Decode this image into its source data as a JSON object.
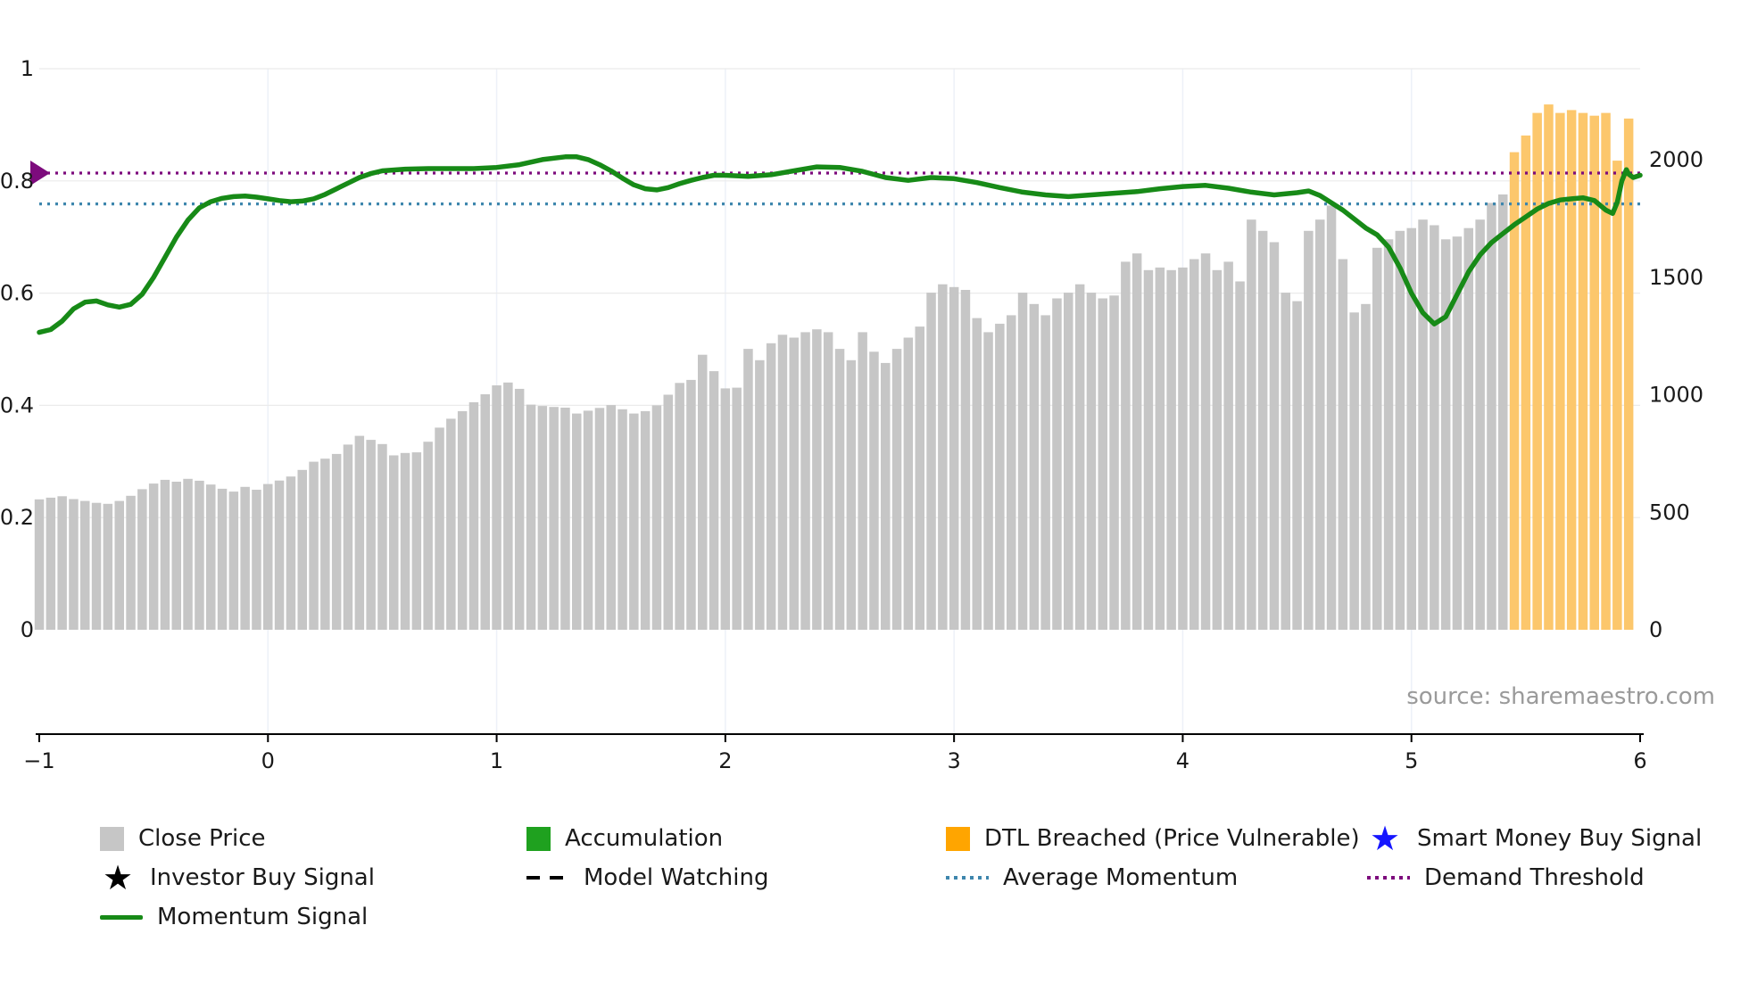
{
  "page": {
    "source": "source: sharemaestro.com"
  },
  "colors": {
    "bar_gray": "#c6c6c6",
    "bar_orange": "#fcc76c",
    "legend_orange": "#ffa500",
    "accumulation_green": "#1fa11f",
    "momentum_green": "#178a17",
    "average_momentum_blue": "#3e86ad",
    "demand_threshold_purple": "#7d0b7d",
    "smart_money_blue": "#1616ff",
    "axis_text": "#1a1a1a",
    "grid_h": "#ebebeb",
    "grid_v": "#edf1f8",
    "source_gray": "#9a9a9a"
  },
  "legend": {
    "items": [
      {
        "label": "Close Price",
        "swatch": "square-gray"
      },
      {
        "label": "Accumulation",
        "swatch": "square-green"
      },
      {
        "label": "DTL Breached (Price Vulnerable)",
        "swatch": "square-orange"
      },
      {
        "label": "Smart Money Buy Signal",
        "swatch": "star-blue"
      },
      {
        "label": "Investor Buy Signal",
        "swatch": "star-black"
      },
      {
        "label": "Model Watching",
        "swatch": "dashed-black-line"
      },
      {
        "label": "Average Momentum",
        "swatch": "dotted-blue-line"
      },
      {
        "label": "Demand Threshold",
        "swatch": "dotted-purple-line"
      },
      {
        "label": "Momentum Signal",
        "swatch": "solid-green-line"
      }
    ]
  },
  "chart_data": {
    "type": "mixed-bar-line",
    "title": "",
    "xlabel": "",
    "ylabel_left": "",
    "ylabel_right": "",
    "xlim": [
      -1,
      6
    ],
    "x_ticks": [
      -1,
      0,
      1,
      2,
      3,
      4,
      5,
      6
    ],
    "x_tick_labels": [
      "−1",
      "0",
      "1",
      "2",
      "3",
      "4",
      "5",
      "6"
    ],
    "left_axis": {
      "range": [
        0,
        1
      ],
      "ticks": [
        0,
        0.2,
        0.4,
        0.6,
        0.8,
        1
      ],
      "tick_labels": [
        "0",
        "0.2",
        "0.4",
        "0.6",
        "0.8",
        "1"
      ]
    },
    "right_axis": {
      "ticks": [
        0,
        500,
        1000,
        1500,
        2000
      ],
      "tick_labels": [
        "0",
        "500",
        "1000",
        "1500",
        "2000"
      ]
    },
    "grid": {
      "h_lines": [
        0.2,
        0.4,
        0.6,
        0.8,
        1.0
      ],
      "v_lines": [
        0,
        1,
        2,
        3,
        4,
        5
      ]
    },
    "thresholds": {
      "average_momentum": 0.759,
      "demand_threshold": 0.814
    },
    "marker": {
      "name": "demand-threshold-marker",
      "x": -1,
      "y": 0.814
    },
    "bars": {
      "name": "Close Price",
      "axis": "right",
      "x_start": -1,
      "x_step": 0.05,
      "dtl_breached_from_index": 129,
      "values": [
        555,
        562,
        568,
        556,
        548,
        540,
        536,
        548,
        570,
        598,
        622,
        638,
        630,
        642,
        634,
        618,
        600,
        588,
        608,
        596,
        620,
        635,
        652,
        680,
        715,
        728,
        748,
        788,
        825,
        808,
        790,
        742,
        752,
        755,
        800,
        860,
        898,
        930,
        968,
        1002,
        1040,
        1052,
        1025,
        958,
        952,
        948,
        945,
        920,
        932,
        944,
        956,
        938,
        920,
        930,
        955,
        1000,
        1050,
        1063,
        1170,
        1100,
        1027,
        1030,
        1195,
        1147,
        1219,
        1255,
        1243,
        1266,
        1278,
        1266,
        1195,
        1147,
        1266,
        1183,
        1135,
        1195,
        1243,
        1290,
        1434,
        1470,
        1458,
        1446,
        1326,
        1266,
        1302,
        1338,
        1434,
        1386,
        1338,
        1410,
        1434,
        1470,
        1434,
        1410,
        1422,
        1566,
        1601,
        1530,
        1541,
        1530,
        1541,
        1577,
        1601,
        1530,
        1566,
        1482,
        1745,
        1697,
        1649,
        1434,
        1398,
        1697,
        1745,
        1805,
        1577,
        1350,
        1386,
        1625,
        1661,
        1697,
        1709,
        1745,
        1721,
        1661,
        1673,
        1709,
        1745,
        1816,
        1852,
        2032,
        2103,
        2199,
        2235,
        2199,
        2211,
        2199,
        2187,
        2199,
        1996,
        2175
      ]
    },
    "momentum": {
      "name": "Momentum Signal",
      "axis": "left",
      "points": [
        [
          -1,
          0.53
        ],
        [
          -0.95,
          0.535
        ],
        [
          -0.9,
          0.55
        ],
        [
          -0.85,
          0.572
        ],
        [
          -0.8,
          0.584
        ],
        [
          -0.75,
          0.586
        ],
        [
          -0.7,
          0.579
        ],
        [
          -0.65,
          0.575
        ],
        [
          -0.6,
          0.58
        ],
        [
          -0.55,
          0.598
        ],
        [
          -0.5,
          0.628
        ],
        [
          -0.45,
          0.664
        ],
        [
          -0.4,
          0.7
        ],
        [
          -0.35,
          0.73
        ],
        [
          -0.3,
          0.752
        ],
        [
          -0.25,
          0.763
        ],
        [
          -0.2,
          0.769
        ],
        [
          -0.15,
          0.772
        ],
        [
          -0.1,
          0.773
        ],
        [
          -0.05,
          0.771
        ],
        [
          0,
          0.768
        ],
        [
          0.05,
          0.765
        ],
        [
          0.1,
          0.763
        ],
        [
          0.15,
          0.764
        ],
        [
          0.2,
          0.768
        ],
        [
          0.25,
          0.776
        ],
        [
          0.3,
          0.786
        ],
        [
          0.35,
          0.796
        ],
        [
          0.4,
          0.806
        ],
        [
          0.45,
          0.813
        ],
        [
          0.5,
          0.818
        ],
        [
          0.6,
          0.821
        ],
        [
          0.7,
          0.822
        ],
        [
          0.8,
          0.822
        ],
        [
          0.9,
          0.822
        ],
        [
          1,
          0.824
        ],
        [
          1.1,
          0.829
        ],
        [
          1.2,
          0.838
        ],
        [
          1.3,
          0.843
        ],
        [
          1.35,
          0.843
        ],
        [
          1.4,
          0.838
        ],
        [
          1.45,
          0.829
        ],
        [
          1.5,
          0.818
        ],
        [
          1.55,
          0.805
        ],
        [
          1.6,
          0.793
        ],
        [
          1.65,
          0.786
        ],
        [
          1.7,
          0.784
        ],
        [
          1.75,
          0.788
        ],
        [
          1.8,
          0.795
        ],
        [
          1.85,
          0.801
        ],
        [
          1.9,
          0.806
        ],
        [
          1.95,
          0.81
        ],
        [
          2,
          0.81
        ],
        [
          2.1,
          0.808
        ],
        [
          2.2,
          0.811
        ],
        [
          2.3,
          0.818
        ],
        [
          2.4,
          0.825
        ],
        [
          2.5,
          0.824
        ],
        [
          2.6,
          0.817
        ],
        [
          2.7,
          0.806
        ],
        [
          2.8,
          0.801
        ],
        [
          2.9,
          0.806
        ],
        [
          3,
          0.804
        ],
        [
          3.1,
          0.797
        ],
        [
          3.2,
          0.788
        ],
        [
          3.3,
          0.78
        ],
        [
          3.4,
          0.775
        ],
        [
          3.5,
          0.772
        ],
        [
          3.6,
          0.775
        ],
        [
          3.7,
          0.778
        ],
        [
          3.8,
          0.781
        ],
        [
          3.9,
          0.786
        ],
        [
          4,
          0.79
        ],
        [
          4.1,
          0.792
        ],
        [
          4.2,
          0.787
        ],
        [
          4.3,
          0.78
        ],
        [
          4.4,
          0.775
        ],
        [
          4.5,
          0.779
        ],
        [
          4.55,
          0.782
        ],
        [
          4.6,
          0.774
        ],
        [
          4.7,
          0.748
        ],
        [
          4.8,
          0.716
        ],
        [
          4.85,
          0.704
        ],
        [
          4.9,
          0.682
        ],
        [
          4.95,
          0.645
        ],
        [
          5,
          0.6
        ],
        [
          5.05,
          0.565
        ],
        [
          5.1,
          0.545
        ],
        [
          5.15,
          0.558
        ],
        [
          5.2,
          0.598
        ],
        [
          5.25,
          0.638
        ],
        [
          5.3,
          0.668
        ],
        [
          5.35,
          0.69
        ],
        [
          5.4,
          0.706
        ],
        [
          5.45,
          0.722
        ],
        [
          5.5,
          0.736
        ],
        [
          5.55,
          0.75
        ],
        [
          5.6,
          0.76
        ],
        [
          5.65,
          0.766
        ],
        [
          5.7,
          0.768
        ],
        [
          5.75,
          0.77
        ],
        [
          5.8,
          0.765
        ],
        [
          5.85,
          0.748
        ],
        [
          5.88,
          0.742
        ],
        [
          5.9,
          0.762
        ],
        [
          5.92,
          0.8
        ],
        [
          5.94,
          0.82
        ],
        [
          5.95,
          0.812
        ],
        [
          5.97,
          0.806
        ],
        [
          6,
          0.81
        ]
      ]
    }
  }
}
